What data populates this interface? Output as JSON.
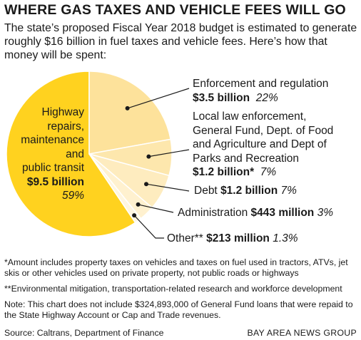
{
  "chart_data": {
    "type": "pie",
    "title": "WHERE GAS TAXES AND VEHICLE FEES WILL GO",
    "subtitle": "The state’s proposed Fiscal Year 2018 budget is estimated to generate roughly $16 billion in fuel taxes and vehicle fees. Here’s how that money will be spent:",
    "slices": [
      {
        "label": "Highway repairs, maintenance and public transit",
        "amount": "$9.5 billion",
        "percent_text": "59%",
        "value": 59,
        "color": "#ffd21f"
      },
      {
        "label": "Enforcement and regulation",
        "amount": "$3.5 billion",
        "percent_text": "22%",
        "value": 22,
        "color": "#fde29b"
      },
      {
        "label": "Local law enforcement, General Fund, Dept. of Food and Agriculture and Dept of Parks and Recreation",
        "amount": "$1.2 billion*",
        "percent_text": "7%",
        "value": 7,
        "color": "#fde7ad"
      },
      {
        "label": "Debt",
        "amount": "$1.2 billion",
        "percent_text": "7%",
        "value": 7,
        "color": "#feecbf"
      },
      {
        "label": "Administration",
        "amount": "$443 million",
        "percent_text": "3%",
        "value": 3,
        "color": "#fff1cf"
      },
      {
        "label": "Other**",
        "amount": "$213 million",
        "percent_text": "1.3%",
        "value": 1.3,
        "color": "#fff6e0"
      }
    ]
  },
  "labels": {
    "highway": {
      "line1": "Highway",
      "line2": "repairs,",
      "line3": "maintenance",
      "line4": "and",
      "line5": "public transit"
    },
    "local": {
      "line1": "Local law enforcement,",
      "line2": "General Fund, Dept. of Food",
      "line3": "and Agriculture and Dept of",
      "line4": "Parks and Recreation"
    }
  },
  "notes": {
    "footnote1": "*Amount includes property taxes on vehicles and taxes on fuel used in tractors, ATVs, jet skis or other vehicles used on private property, not public roads or highways",
    "footnote2": "**Environmental mitigation, transportation-related research and workforce development",
    "note": "Note: This chart does not include $324,893,000 of General Fund loans that were repaid to the State Highway Account or Cap and Trade revenues."
  },
  "source": "Source: Caltrans, Department of Finance",
  "credit": "BAY AREA NEWS GROUP"
}
